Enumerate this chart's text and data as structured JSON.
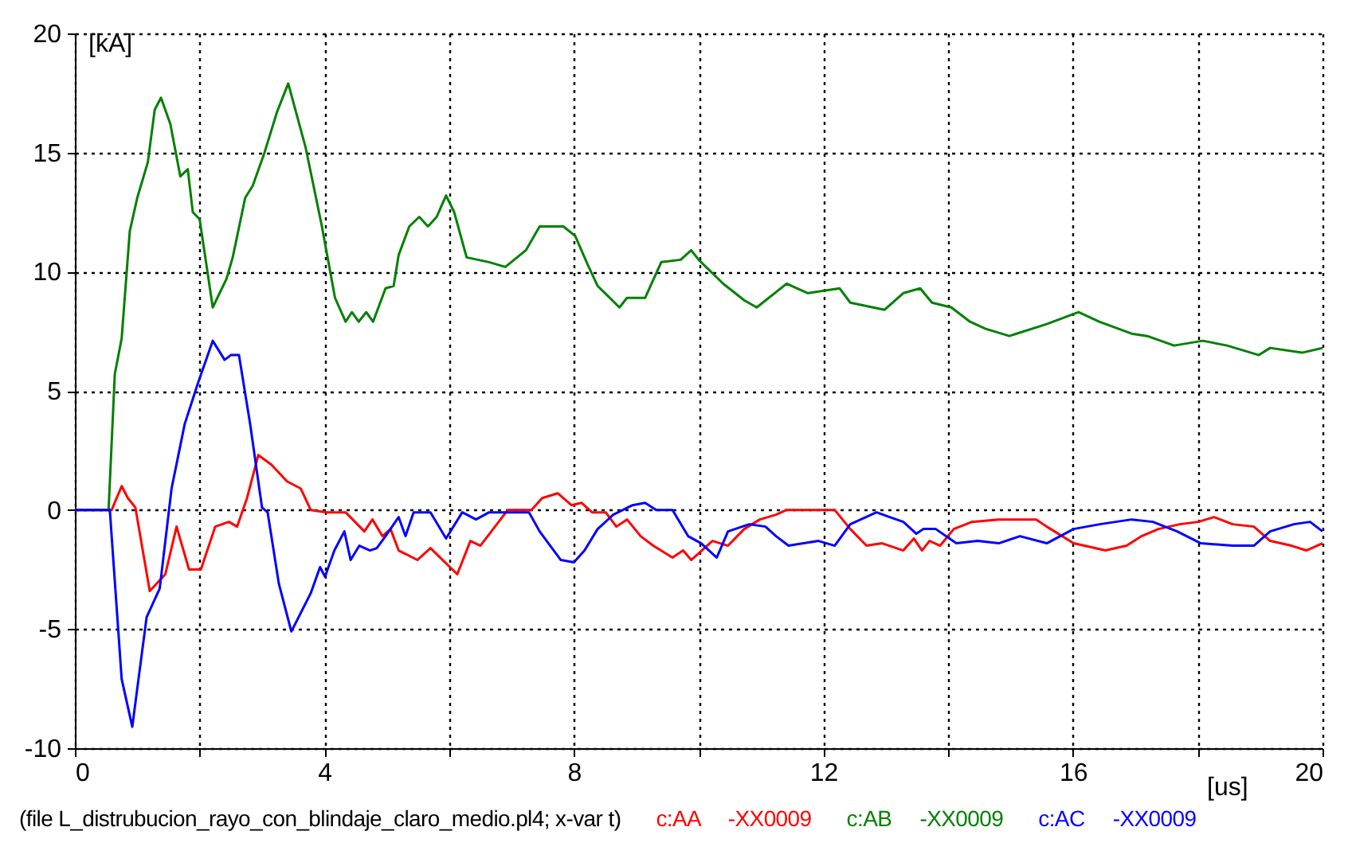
{
  "chart_data": {
    "type": "line",
    "xlabel": "[us]",
    "ylabel": "[kA]",
    "xlim": [
      0,
      20
    ],
    "ylim": [
      -10,
      20
    ],
    "xticks": [
      0,
      {
        "value": 2,
        "label": null
      },
      4,
      {
        "value": 6,
        "label": null
      },
      8,
      {
        "value": 10,
        "label": null
      },
      12,
      {
        "value": 14,
        "label": null
      },
      16,
      {
        "value": 18,
        "label": null
      },
      20
    ],
    "yticks": [
      -10,
      -5,
      0,
      5,
      10,
      15,
      20
    ],
    "grid": true,
    "legend": "bottom",
    "line_style": "solid",
    "annotations": [
      "(file L_distrubucion_rayo_con_blindaje_claro_medio.pl4; x-var t)"
    ],
    "series": [
      {
        "name": "c:AA -XX0009",
        "color": "#ff0000",
        "x": [
          0,
          0.59,
          0.75,
          0.85,
          0.97,
          1.2,
          1.45,
          1.63,
          1.83,
          2.02,
          2.25,
          2.47,
          2.6,
          2.76,
          2.94,
          3.15,
          3.4,
          3.62,
          3.78,
          4.04,
          4.34,
          4.64,
          4.77,
          4.93,
          5.06,
          5.19,
          5.49,
          5.7,
          6.13,
          6.34,
          6.5,
          6.94,
          7.32,
          7.49,
          7.74,
          7.96,
          8.12,
          8.29,
          8.51,
          8.68,
          8.85,
          9.07,
          9.27,
          9.58,
          9.75,
          9.88,
          10.22,
          10.47,
          10.73,
          10.98,
          11.24,
          11.41,
          12.18,
          12.43,
          12.69,
          12.94,
          13.28,
          13.45,
          13.58,
          13.7,
          13.87,
          14.09,
          14.38,
          14.81,
          15.41,
          15.58,
          16.01,
          16.52,
          16.86,
          17.1,
          17.37,
          17.71,
          18.01,
          18.26,
          18.56,
          18.9,
          19.16,
          19.5,
          19.74,
          20
        ],
        "values": [
          0,
          0,
          1.0,
          0.5,
          0.1,
          -3.4,
          -2.7,
          -0.7,
          -2.5,
          -2.5,
          -0.7,
          -0.5,
          -0.7,
          0.5,
          2.3,
          1.9,
          1.2,
          0.9,
          0,
          -0.1,
          -0.1,
          -0.9,
          -0.4,
          -1.1,
          -0.8,
          -1.7,
          -2.1,
          -1.6,
          -2.7,
          -1.3,
          -1.5,
          0,
          0,
          0.5,
          0.7,
          0.2,
          0.3,
          -0.1,
          -0.1,
          -0.7,
          -0.4,
          -1.1,
          -1.5,
          -2.0,
          -1.7,
          -2.1,
          -1.3,
          -1.5,
          -0.8,
          -0.4,
          -0.2,
          0,
          0,
          -0.8,
          -1.5,
          -1.4,
          -1.7,
          -1.2,
          -1.7,
          -1.3,
          -1.5,
          -0.8,
          -0.5,
          -0.4,
          -0.4,
          -0.7,
          -1.4,
          -1.7,
          -1.5,
          -1.1,
          -0.8,
          -0.6,
          -0.5,
          -0.3,
          -0.6,
          -0.7,
          -1.3,
          -1.5,
          -1.7,
          -1.4
        ]
      },
      {
        "name": "c:AB -XX0009",
        "color": "#008000",
        "x": [
          0,
          0.54,
          0.64,
          0.75,
          0.88,
          1.0,
          1.17,
          1.28,
          1.38,
          1.53,
          1.69,
          1.81,
          1.89,
          2.0,
          2.21,
          2.43,
          2.53,
          2.73,
          2.85,
          3.04,
          3.24,
          3.42,
          3.7,
          3.96,
          4.17,
          4.34,
          4.44,
          4.55,
          4.67,
          4.78,
          4.98,
          5.11,
          5.19,
          5.36,
          5.52,
          5.66,
          5.8,
          5.95,
          6.08,
          6.28,
          6.64,
          6.9,
          7.23,
          7.45,
          7.83,
          8.02,
          8.22,
          8.38,
          8.73,
          8.85,
          9.14,
          9.4,
          9.71,
          9.88,
          10.0,
          10.39,
          10.73,
          10.93,
          11.41,
          11.75,
          12.26,
          12.43,
          12.98,
          13.28,
          13.55,
          13.74,
          14.05,
          14.35,
          14.6,
          14.98,
          15.58,
          16.09,
          16.42,
          16.94,
          17.19,
          17.62,
          18.08,
          18.47,
          18.98,
          19.16,
          19.67,
          20
        ],
        "values": [
          0,
          0,
          5.7,
          7.2,
          11.7,
          13.1,
          14.6,
          16.8,
          17.3,
          16.2,
          14.0,
          14.3,
          12.5,
          12.2,
          8.5,
          9.7,
          10.6,
          13.1,
          13.6,
          15.0,
          16.7,
          17.9,
          15.2,
          11.9,
          8.9,
          7.9,
          8.3,
          7.9,
          8.3,
          7.9,
          9.3,
          9.4,
          10.7,
          11.9,
          12.3,
          11.9,
          12.3,
          13.2,
          12.5,
          10.6,
          10.4,
          10.2,
          10.9,
          11.9,
          11.9,
          11.5,
          10.3,
          9.4,
          8.5,
          8.9,
          8.9,
          10.4,
          10.5,
          10.9,
          10.5,
          9.5,
          8.8,
          8.5,
          9.5,
          9.1,
          9.3,
          8.7,
          8.4,
          9.1,
          9.3,
          8.7,
          8.5,
          7.9,
          7.6,
          7.3,
          7.8,
          8.3,
          7.9,
          7.4,
          7.3,
          6.9,
          7.1,
          6.9,
          6.5,
          6.8,
          6.6,
          6.8
        ]
      },
      {
        "name": "c:AC -XX0009",
        "color": "#0000ff",
        "x": [
          0,
          0.56,
          0.75,
          0.92,
          1.15,
          1.36,
          1.55,
          1.76,
          1.97,
          2.21,
          2.4,
          2.5,
          2.63,
          2.81,
          3.0,
          3.09,
          3.27,
          3.47,
          3.78,
          3.93,
          4.01,
          4.16,
          4.32,
          4.42,
          4.56,
          4.73,
          4.84,
          4.98,
          5.19,
          5.3,
          5.43,
          5.7,
          5.95,
          6.21,
          6.43,
          6.64,
          7.28,
          7.45,
          7.79,
          8.0,
          8.17,
          8.38,
          8.63,
          8.94,
          9.14,
          9.32,
          9.58,
          9.83,
          10.04,
          10.29,
          10.47,
          10.81,
          11.07,
          11.24,
          11.44,
          11.92,
          12.18,
          12.43,
          12.85,
          13.06,
          13.28,
          13.49,
          13.6,
          13.8,
          14.13,
          14.47,
          14.81,
          15.15,
          15.58,
          16.01,
          16.43,
          16.94,
          17.28,
          17.67,
          18.05,
          18.56,
          18.9,
          19.16,
          19.54,
          19.8,
          20
        ],
        "values": [
          0,
          0,
          -7.1,
          -9.1,
          -4.5,
          -3.3,
          0.9,
          3.6,
          5.3,
          7.1,
          6.3,
          6.5,
          6.5,
          3.6,
          0.1,
          -0.1,
          -3.1,
          -5.1,
          -3.5,
          -2.4,
          -2.8,
          -1.7,
          -0.9,
          -2.1,
          -1.5,
          -1.7,
          -1.6,
          -1.1,
          -0.3,
          -1.1,
          -0.1,
          -0.1,
          -1.2,
          -0.1,
          -0.4,
          -0.1,
          -0.1,
          -0.9,
          -2.1,
          -2.2,
          -1.7,
          -0.8,
          -0.2,
          0.2,
          0.3,
          0,
          0,
          -1.1,
          -1.4,
          -2.0,
          -0.9,
          -0.6,
          -0.7,
          -1.1,
          -1.5,
          -1.3,
          -1.5,
          -0.6,
          -0.1,
          -0.3,
          -0.5,
          -1.0,
          -0.8,
          -0.8,
          -1.4,
          -1.3,
          -1.4,
          -1.1,
          -1.4,
          -0.8,
          -0.6,
          -0.4,
          -0.5,
          -0.9,
          -1.4,
          -1.5,
          -1.5,
          -0.9,
          -0.6,
          -0.5,
          -0.9
        ]
      }
    ]
  }
}
